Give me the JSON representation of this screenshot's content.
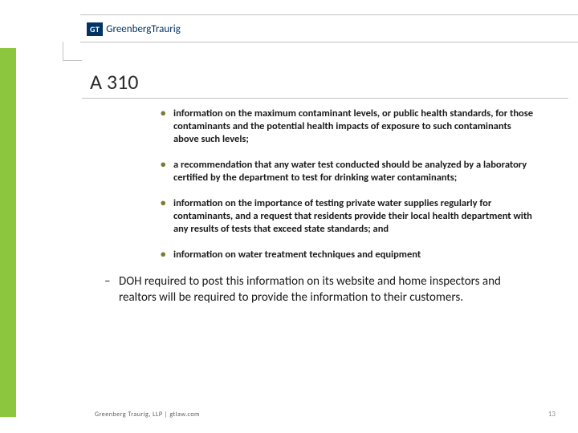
{
  "logo": {
    "badge": "GT",
    "name_bold": "Greenberg",
    "name_light": "Traurig"
  },
  "title": "A 310",
  "bullets": [
    "information on the maximum contaminant levels, or public health standards, for those contaminants and the potential health impacts of exposure to  such  contaminants above such levels;",
    "a recommendation that any water test conducted should be analyzed by  a  laboratory certified by the department to test for drinking water contaminants;",
    "information on the importance of testing  private  water supplies regularly for  contaminants, and a request that residents provide their  local health department with any results  of  tests  that  exceed  state standards; and",
    "information on water treatment techniques and equipment"
  ],
  "dash": "DOH  required to post this information on its website and home inspectors and realtors will be required to provide the information to their customers.",
  "footer": "Greenberg Traurig, LLP | gtlaw.com",
  "page": "13",
  "colors": {
    "accent_green": "#8cc63f",
    "brand_navy": "#003366",
    "bullet_color": "#7a7a33",
    "divider": "#c2c2c2"
  }
}
